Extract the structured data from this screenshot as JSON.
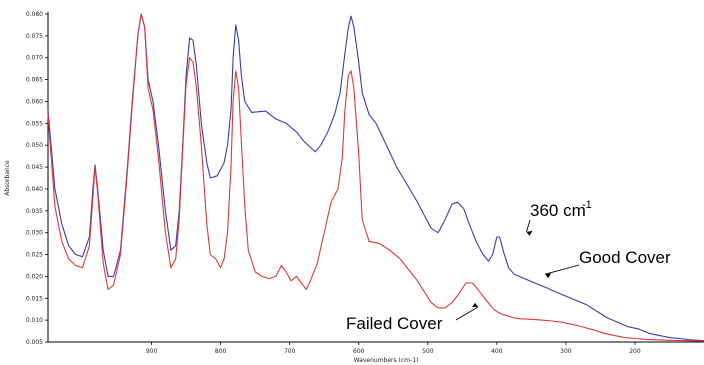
{
  "chart_data": {
    "type": "line",
    "title": "",
    "xlabel": "Wavenumbers (cm-1)",
    "ylabel": "Absorbance",
    "xlim": [
      1050,
      100
    ],
    "ylim": [
      0.005,
      0.08
    ],
    "x_ticks": [
      900,
      800,
      700,
      600,
      500,
      400,
      300,
      200
    ],
    "y_ticks": [
      0.005,
      0.01,
      0.015,
      0.02,
      0.025,
      0.03,
      0.035,
      0.04,
      0.045,
      0.05,
      0.055,
      0.06,
      0.065,
      0.07,
      0.075,
      0.08
    ],
    "y_tick_labels": [
      "0.005",
      "0.010",
      "0.015",
      "0.020",
      "0.025",
      "0.030",
      "0.035",
      "0.040",
      "0.045",
      "0.050",
      "0.055",
      "0.060",
      "0.065",
      "0.070",
      "0.075",
      "0.080"
    ],
    "grid": false,
    "series": [
      {
        "color": "#3b3bb0",
        "points": [
          [
            1050,
            0.058
          ],
          [
            1040,
            0.04
          ],
          [
            1030,
            0.032
          ],
          [
            1020,
            0.027
          ],
          [
            1010,
            0.025
          ],
          [
            1000,
            0.0245
          ],
          [
            990,
            0.029
          ],
          [
            985,
            0.04
          ],
          [
            982,
            0.0455
          ],
          [
            978,
            0.04
          ],
          [
            970,
            0.026
          ],
          [
            963,
            0.02
          ],
          [
            955,
            0.02
          ],
          [
            945,
            0.026
          ],
          [
            935,
            0.045
          ],
          [
            928,
            0.06
          ],
          [
            920,
            0.075
          ],
          [
            915,
            0.08
          ],
          [
            910,
            0.077
          ],
          [
            905,
            0.065
          ],
          [
            898,
            0.06
          ],
          [
            890,
            0.05
          ],
          [
            880,
            0.035
          ],
          [
            872,
            0.026
          ],
          [
            865,
            0.027
          ],
          [
            860,
            0.035
          ],
          [
            855,
            0.05
          ],
          [
            850,
            0.066
          ],
          [
            845,
            0.0745
          ],
          [
            840,
            0.074
          ],
          [
            835,
            0.068
          ],
          [
            828,
            0.055
          ],
          [
            820,
            0.046
          ],
          [
            815,
            0.0425
          ],
          [
            805,
            0.043
          ],
          [
            795,
            0.046
          ],
          [
            790,
            0.05
          ],
          [
            785,
            0.058
          ],
          [
            782,
            0.07
          ],
          [
            778,
            0.0775
          ],
          [
            774,
            0.074
          ],
          [
            770,
            0.066
          ],
          [
            765,
            0.06
          ],
          [
            755,
            0.0575
          ],
          [
            735,
            0.0578
          ],
          [
            720,
            0.056
          ],
          [
            705,
            0.055
          ],
          [
            690,
            0.053
          ],
          [
            680,
            0.051
          ],
          [
            670,
            0.0495
          ],
          [
            663,
            0.0485
          ],
          [
            655,
            0.05
          ],
          [
            645,
            0.053
          ],
          [
            635,
            0.057
          ],
          [
            627,
            0.062
          ],
          [
            620,
            0.071
          ],
          [
            615,
            0.077
          ],
          [
            611,
            0.0795
          ],
          [
            607,
            0.077
          ],
          [
            600,
            0.069
          ],
          [
            595,
            0.062
          ],
          [
            585,
            0.057
          ],
          [
            575,
            0.055
          ],
          [
            560,
            0.05
          ],
          [
            545,
            0.045
          ],
          [
            530,
            0.041
          ],
          [
            515,
            0.037
          ],
          [
            505,
            0.034
          ],
          [
            495,
            0.031
          ],
          [
            485,
            0.03
          ],
          [
            475,
            0.033
          ],
          [
            465,
            0.0365
          ],
          [
            457,
            0.037
          ],
          [
            448,
            0.0355
          ],
          [
            440,
            0.032
          ],
          [
            430,
            0.028
          ],
          [
            420,
            0.025
          ],
          [
            412,
            0.0235
          ],
          [
            406,
            0.025
          ],
          [
            400,
            0.029
          ],
          [
            396,
            0.029
          ],
          [
            390,
            0.0255
          ],
          [
            383,
            0.022
          ],
          [
            375,
            0.0205
          ],
          [
            360,
            0.0195
          ],
          [
            345,
            0.0185
          ],
          [
            330,
            0.0175
          ],
          [
            315,
            0.0165
          ],
          [
            300,
            0.0155
          ],
          [
            285,
            0.0145
          ],
          [
            270,
            0.0135
          ],
          [
            255,
            0.012
          ],
          [
            240,
            0.0105
          ],
          [
            225,
            0.0095
          ],
          [
            210,
            0.0085
          ],
          [
            195,
            0.008
          ],
          [
            180,
            0.007
          ],
          [
            165,
            0.0065
          ],
          [
            150,
            0.006
          ],
          [
            135,
            0.0058
          ],
          [
            120,
            0.0055
          ],
          [
            100,
            0.0053
          ]
        ]
      },
      {
        "color": "#d93a3a",
        "points": [
          [
            1050,
            0.057
          ],
          [
            1040,
            0.036
          ],
          [
            1030,
            0.028
          ],
          [
            1020,
            0.024
          ],
          [
            1010,
            0.0225
          ],
          [
            1000,
            0.022
          ],
          [
            990,
            0.027
          ],
          [
            985,
            0.038
          ],
          [
            982,
            0.045
          ],
          [
            978,
            0.039
          ],
          [
            970,
            0.023
          ],
          [
            963,
            0.017
          ],
          [
            955,
            0.018
          ],
          [
            945,
            0.025
          ],
          [
            935,
            0.044
          ],
          [
            928,
            0.059
          ],
          [
            920,
            0.075
          ],
          [
            915,
            0.08
          ],
          [
            910,
            0.077
          ],
          [
            905,
            0.063
          ],
          [
            898,
            0.058
          ],
          [
            890,
            0.047
          ],
          [
            880,
            0.03
          ],
          [
            872,
            0.022
          ],
          [
            865,
            0.024
          ],
          [
            860,
            0.033
          ],
          [
            855,
            0.049
          ],
          [
            850,
            0.064
          ],
          [
            845,
            0.07
          ],
          [
            840,
            0.069
          ],
          [
            835,
            0.063
          ],
          [
            828,
            0.05
          ],
          [
            820,
            0.032
          ],
          [
            815,
            0.025
          ],
          [
            807,
            0.024
          ],
          [
            800,
            0.022
          ],
          [
            795,
            0.024
          ],
          [
            790,
            0.03
          ],
          [
            785,
            0.045
          ],
          [
            782,
            0.06
          ],
          [
            778,
            0.067
          ],
          [
            774,
            0.063
          ],
          [
            770,
            0.051
          ],
          [
            765,
            0.036
          ],
          [
            760,
            0.026
          ],
          [
            750,
            0.021
          ],
          [
            740,
            0.02
          ],
          [
            730,
            0.0195
          ],
          [
            720,
            0.02
          ],
          [
            712,
            0.0225
          ],
          [
            705,
            0.021
          ],
          [
            698,
            0.019
          ],
          [
            690,
            0.02
          ],
          [
            683,
            0.0185
          ],
          [
            676,
            0.017
          ],
          [
            670,
            0.019
          ],
          [
            660,
            0.023
          ],
          [
            650,
            0.03
          ],
          [
            640,
            0.037
          ],
          [
            630,
            0.04
          ],
          [
            624,
            0.047
          ],
          [
            620,
            0.058
          ],
          [
            615,
            0.066
          ],
          [
            611,
            0.067
          ],
          [
            607,
            0.063
          ],
          [
            600,
            0.048
          ],
          [
            595,
            0.033
          ],
          [
            585,
            0.028
          ],
          [
            570,
            0.0275
          ],
          [
            555,
            0.026
          ],
          [
            540,
            0.024
          ],
          [
            525,
            0.021
          ],
          [
            515,
            0.019
          ],
          [
            505,
            0.0165
          ],
          [
            495,
            0.014
          ],
          [
            485,
            0.0128
          ],
          [
            475,
            0.0128
          ],
          [
            465,
            0.014
          ],
          [
            455,
            0.016
          ],
          [
            445,
            0.0185
          ],
          [
            435,
            0.0185
          ],
          [
            425,
            0.0165
          ],
          [
            415,
            0.0145
          ],
          [
            405,
            0.0125
          ],
          [
            395,
            0.0115
          ],
          [
            385,
            0.011
          ],
          [
            375,
            0.0105
          ],
          [
            365,
            0.0103
          ],
          [
            350,
            0.0102
          ],
          [
            335,
            0.01
          ],
          [
            320,
            0.0098
          ],
          [
            305,
            0.0095
          ],
          [
            290,
            0.009
          ],
          [
            275,
            0.0084
          ],
          [
            260,
            0.0078
          ],
          [
            245,
            0.007
          ],
          [
            230,
            0.0065
          ],
          [
            215,
            0.006
          ],
          [
            200,
            0.0058
          ],
          [
            185,
            0.0056
          ],
          [
            170,
            0.0055
          ],
          [
            150,
            0.0054
          ],
          [
            125,
            0.0053
          ],
          [
            100,
            0.0052
          ]
        ]
      }
    ],
    "annotations": [
      {
        "text": "360 cm",
        "sup": "-1",
        "target": [
          360,
          0.0295
        ]
      },
      {
        "text": "Good Cover",
        "target": [
          330,
          0.0205
        ]
      },
      {
        "text": "Failed Cover",
        "target": [
          430,
          0.0128
        ]
      }
    ]
  }
}
